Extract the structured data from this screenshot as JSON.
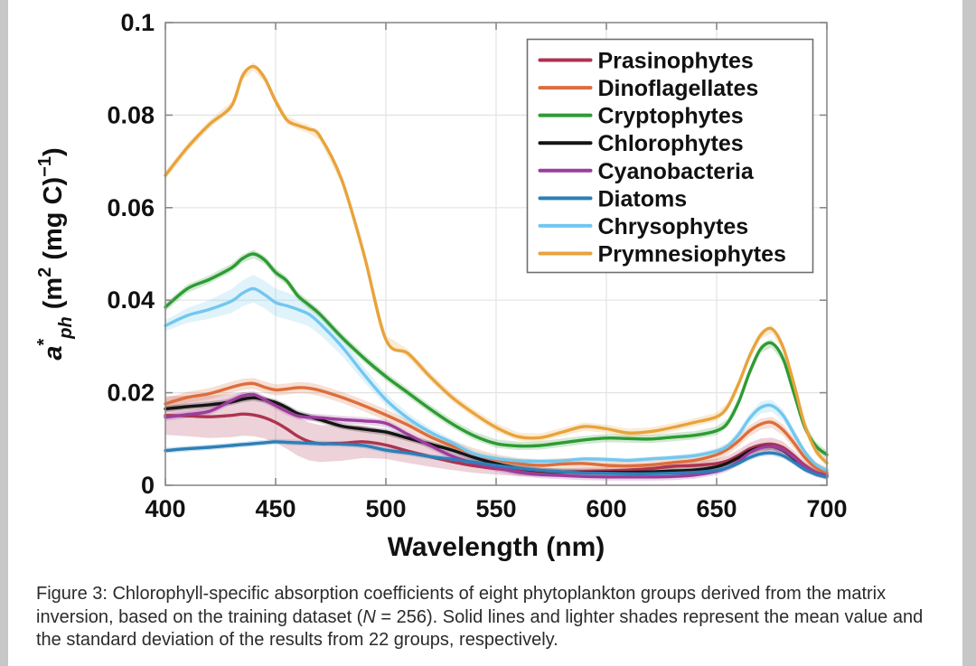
{
  "page": {
    "background": "#ffffff",
    "left_edge_color": "#c7c7c7",
    "right_edge_color": "#c7c7c7"
  },
  "figure": {
    "caption": {
      "prefix": "Figure 3: Chlorophyll-specific absorption coefficients of eight phytoplankton groups derived from the matrix inversion, based on the training dataset (",
      "italic_term": "N",
      "suffix": " = 256). Solid lines and lighter shades represent the mean value and the standard deviation of the results from 22 groups, respectively."
    }
  },
  "chart_data": {
    "type": "line",
    "title": "",
    "xlabel": "Wavelength (nm)",
    "ylabel": "a*ph (m2 (mg C)-1)",
    "ylabel_parts": [
      "a",
      "*",
      "ph",
      " (m",
      "2",
      " (mg C)",
      "−1",
      ")"
    ],
    "xlim": [
      400,
      700
    ],
    "ylim": [
      0,
      0.1
    ],
    "xticks": [
      400,
      450,
      500,
      550,
      600,
      650,
      700
    ],
    "yticks": [
      0,
      0.02,
      0.04,
      0.06,
      0.08,
      0.1
    ],
    "ytick_labels": [
      "0",
      "0.02",
      "0.04",
      "0.06",
      "0.08",
      "0.1"
    ],
    "grid": true,
    "legend_position": "top-right",
    "frame_color": "#8a8a8a",
    "grid_color": "#e3e3e3",
    "band_opacity": 0.22,
    "x": [
      400,
      410,
      420,
      430,
      435,
      440,
      445,
      450,
      455,
      460,
      465,
      470,
      480,
      490,
      500,
      510,
      520,
      530,
      540,
      550,
      560,
      570,
      580,
      590,
      600,
      610,
      620,
      630,
      640,
      650,
      655,
      660,
      665,
      670,
      675,
      680,
      685,
      690,
      695,
      700
    ],
    "series": [
      {
        "name": "Prasinophytes",
        "color": "#AC3450",
        "values": [
          0.0151,
          0.015,
          0.0148,
          0.0151,
          0.0154,
          0.0152,
          0.0146,
          0.0136,
          0.0122,
          0.0106,
          0.0095,
          0.009,
          0.0091,
          0.0094,
          0.0087,
          0.0074,
          0.0062,
          0.0051,
          0.0042,
          0.0036,
          0.0031,
          0.0028,
          0.0028,
          0.003,
          0.0031,
          0.0033,
          0.0036,
          0.0041,
          0.0043,
          0.0047,
          0.0053,
          0.0065,
          0.0079,
          0.0087,
          0.0089,
          0.0082,
          0.0064,
          0.0043,
          0.0028,
          0.0022
        ],
        "sigma": [
          0.0042,
          0.0044,
          0.0046,
          0.0047,
          0.0047,
          0.0046,
          0.0045,
          0.0044,
          0.0043,
          0.0042,
          0.0041,
          0.004,
          0.0038,
          0.0035,
          0.003,
          0.0026,
          0.0022,
          0.0018,
          0.0015,
          0.0013,
          0.0011,
          0.0009,
          0.0008,
          0.0008,
          0.0008,
          0.0008,
          0.0009,
          0.0009,
          0.001,
          0.001,
          0.0011,
          0.0012,
          0.0013,
          0.0014,
          0.0014,
          0.0013,
          0.0011,
          0.0008,
          0.0006,
          0.0005
        ]
      },
      {
        "name": "Dinoflagellates",
        "color": "#DC6E3C",
        "values": [
          0.0176,
          0.019,
          0.0198,
          0.0212,
          0.0218,
          0.022,
          0.0212,
          0.0206,
          0.0208,
          0.0211,
          0.021,
          0.0205,
          0.019,
          0.0172,
          0.0152,
          0.013,
          0.0105,
          0.0085,
          0.0068,
          0.0055,
          0.0047,
          0.0043,
          0.0046,
          0.0047,
          0.0043,
          0.0042,
          0.0044,
          0.0049,
          0.0054,
          0.0066,
          0.0078,
          0.0096,
          0.0118,
          0.0132,
          0.0136,
          0.012,
          0.0092,
          0.006,
          0.0038,
          0.0027
        ],
        "sigma": 0.0012
      },
      {
        "name": "Cryptophytes",
        "color": "#2E9B33",
        "values": [
          0.0385,
          0.0425,
          0.0445,
          0.047,
          0.049,
          0.05,
          0.0487,
          0.046,
          0.0442,
          0.041,
          0.039,
          0.037,
          0.032,
          0.0275,
          0.0235,
          0.02,
          0.0165,
          0.0133,
          0.0107,
          0.009,
          0.0085,
          0.0086,
          0.0092,
          0.0098,
          0.0102,
          0.0101,
          0.01,
          0.0104,
          0.0108,
          0.0118,
          0.0135,
          0.018,
          0.0245,
          0.0295,
          0.0307,
          0.0275,
          0.02,
          0.0125,
          0.0085,
          0.0066
        ],
        "sigma": 0.0009
      },
      {
        "name": "Chlorophytes",
        "color": "#141414",
        "values": [
          0.0165,
          0.017,
          0.0174,
          0.018,
          0.0186,
          0.0189,
          0.0185,
          0.0179,
          0.0168,
          0.0155,
          0.0148,
          0.0142,
          0.0128,
          0.0121,
          0.0115,
          0.0102,
          0.0089,
          0.0076,
          0.006,
          0.0047,
          0.0037,
          0.0031,
          0.0029,
          0.0028,
          0.0028,
          0.0028,
          0.0029,
          0.0031,
          0.0033,
          0.004,
          0.0048,
          0.006,
          0.0074,
          0.0082,
          0.0084,
          0.0076,
          0.0058,
          0.0038,
          0.0026,
          0.002
        ],
        "sigma": 0.0007
      },
      {
        "name": "Cyanobacteria",
        "color": "#9C3D9C",
        "values": [
          0.0147,
          0.0153,
          0.016,
          0.0183,
          0.0193,
          0.0196,
          0.0185,
          0.0172,
          0.016,
          0.015,
          0.0147,
          0.0146,
          0.0142,
          0.0139,
          0.0134,
          0.011,
          0.0086,
          0.0063,
          0.0048,
          0.0038,
          0.0028,
          0.0023,
          0.0021,
          0.0019,
          0.0018,
          0.0018,
          0.0018,
          0.0019,
          0.0022,
          0.003,
          0.0038,
          0.0052,
          0.007,
          0.0081,
          0.0084,
          0.0077,
          0.006,
          0.004,
          0.0027,
          0.002
        ],
        "sigma": 0.0008
      },
      {
        "name": "Diatoms",
        "color": "#2C7FB8",
        "values": [
          0.0075,
          0.0079,
          0.0082,
          0.0086,
          0.0088,
          0.009,
          0.0092,
          0.0094,
          0.0093,
          0.0092,
          0.0091,
          0.009,
          0.0089,
          0.0086,
          0.0076,
          0.007,
          0.0062,
          0.0056,
          0.005,
          0.0043,
          0.0037,
          0.0032,
          0.0029,
          0.0027,
          0.0026,
          0.0025,
          0.0025,
          0.0026,
          0.0028,
          0.0032,
          0.0038,
          0.0048,
          0.006,
          0.0068,
          0.007,
          0.0064,
          0.005,
          0.0034,
          0.0024,
          0.0018
        ],
        "sigma": 0.0006
      },
      {
        "name": "Chrysophytes",
        "color": "#72C7EF",
        "values": [
          0.0345,
          0.0367,
          0.038,
          0.0398,
          0.0415,
          0.0425,
          0.0412,
          0.0395,
          0.0388,
          0.038,
          0.037,
          0.035,
          0.03,
          0.024,
          0.0185,
          0.0145,
          0.0115,
          0.0092,
          0.0068,
          0.0058,
          0.0053,
          0.0052,
          0.0053,
          0.0057,
          0.0056,
          0.0054,
          0.0057,
          0.006,
          0.0064,
          0.0074,
          0.0085,
          0.011,
          0.0145,
          0.0168,
          0.0172,
          0.0152,
          0.0112,
          0.0072,
          0.0045,
          0.0032
        ],
        "sigma": [
          0.0012,
          0.0016,
          0.002,
          0.0026,
          0.0028,
          0.003,
          0.003,
          0.003,
          0.0029,
          0.0028,
          0.0026,
          0.0024,
          0.002,
          0.0016,
          0.0013,
          0.0011,
          0.0009,
          0.0008,
          0.0007,
          0.0006,
          0.0005,
          0.0005,
          0.0005,
          0.0005,
          0.0005,
          0.0005,
          0.0005,
          0.0005,
          0.0006,
          0.0006,
          0.0007,
          0.0009,
          0.0011,
          0.0013,
          0.0013,
          0.0012,
          0.001,
          0.0007,
          0.0005,
          0.0004
        ]
      },
      {
        "name": "Prymnesiophytes",
        "color": "#E8A33C",
        "values": [
          0.067,
          0.073,
          0.078,
          0.082,
          0.0885,
          0.0905,
          0.088,
          0.083,
          0.079,
          0.0778,
          0.077,
          0.0755,
          0.066,
          0.05,
          0.0315,
          0.0285,
          0.0235,
          0.019,
          0.0155,
          0.0125,
          0.0105,
          0.0103,
          0.0115,
          0.0127,
          0.0122,
          0.0113,
          0.0116,
          0.0125,
          0.0136,
          0.0148,
          0.017,
          0.022,
          0.028,
          0.0325,
          0.0338,
          0.03,
          0.022,
          0.013,
          0.0075,
          0.0048
        ],
        "sigma": 0.0009
      }
    ]
  }
}
